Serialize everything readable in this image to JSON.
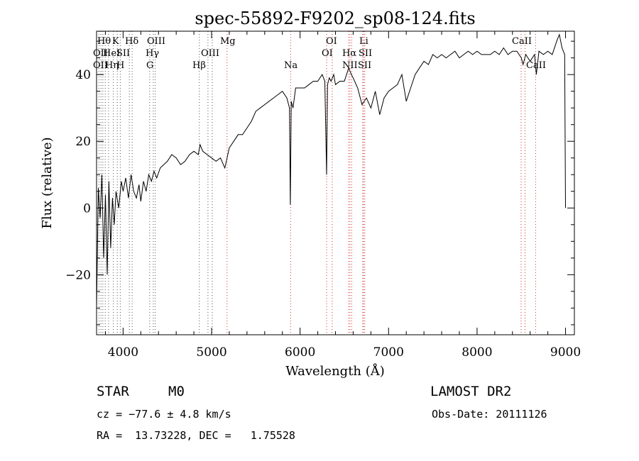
{
  "chart_data": {
    "type": "line",
    "title": "spec-55892-F9202_sp08-124.fits",
    "xlabel": "Wavelength (Å)",
    "ylabel": "Flux (relative)",
    "xlim": [
      3700,
      9100
    ],
    "ylim": [
      -38,
      53
    ],
    "x_ticks": [
      4000,
      5000,
      6000,
      7000,
      8000,
      9000
    ],
    "x_tick_labels": [
      "4000",
      "5000",
      "6000",
      "7000",
      "8000",
      "9000"
    ],
    "y_ticks": [
      -20,
      0,
      20,
      40
    ],
    "y_tick_labels": [
      "−20",
      "0",
      "20",
      "40"
    ],
    "grid": false,
    "series": [
      {
        "values_x": [
          3700,
          3720,
          3740,
          3760,
          3780,
          3800,
          3820,
          3840,
          3860,
          3880,
          3900,
          3920,
          3950,
          3980,
          4000,
          4030,
          4060,
          4090,
          4120,
          4150,
          4180,
          4200,
          4230,
          4260,
          4290,
          4320,
          4350,
          4380,
          4420,
          4460,
          4500,
          4550,
          4600,
          4650,
          4700,
          4750,
          4800,
          4850,
          4870,
          4900,
          4950,
          5000,
          5050,
          5100,
          5150,
          5200,
          5250,
          5300,
          5350,
          5400,
          5450,
          5500,
          5550,
          5600,
          5650,
          5700,
          5750,
          5800,
          5850,
          5880,
          5890,
          5900,
          5920,
          5950,
          6000,
          6050,
          6100,
          6150,
          6200,
          6250,
          6280,
          6300,
          6310,
          6330,
          6350,
          6380,
          6400,
          6450,
          6500,
          6550,
          6580,
          6600,
          6650,
          6700,
          6750,
          6800,
          6850,
          6900,
          6950,
          7000,
          7050,
          7100,
          7150,
          7200,
          7250,
          7300,
          7350,
          7400,
          7450,
          7500,
          7550,
          7600,
          7650,
          7700,
          7750,
          7800,
          7850,
          7900,
          7950,
          8000,
          8050,
          8100,
          8150,
          8200,
          8250,
          8300,
          8350,
          8400,
          8450,
          8500,
          8520,
          8550,
          8600,
          8650,
          8670,
          8700,
          8750,
          8800,
          8850,
          8900,
          8930,
          8960,
          8990,
          9000
        ],
        "values_y": [
          -30,
          6,
          -3,
          10,
          -15,
          4,
          -20,
          8,
          -12,
          3,
          -5,
          5,
          0,
          8,
          5,
          9,
          3,
          10,
          5,
          3,
          7,
          2,
          8,
          5,
          10,
          8,
          11,
          9,
          12,
          13,
          14,
          16,
          15,
          13,
          14,
          16,
          17,
          16,
          19,
          17,
          16,
          15,
          14,
          15,
          12,
          18,
          20,
          22,
          22,
          24,
          26,
          29,
          30,
          31,
          32,
          33,
          34,
          35,
          33,
          30,
          1,
          32,
          30,
          36,
          36,
          36,
          37,
          38,
          38,
          40,
          38,
          10,
          37,
          39,
          38,
          40,
          37,
          38,
          38,
          42,
          40,
          39,
          36,
          31,
          33,
          30,
          35,
          28,
          33,
          35,
          36,
          37,
          40,
          32,
          36,
          40,
          42,
          44,
          43,
          46,
          45,
          46,
          45,
          46,
          47,
          45,
          46,
          47,
          46,
          47,
          46,
          46,
          46,
          47,
          46,
          48,
          46,
          47,
          47,
          45,
          43,
          46,
          44,
          46,
          40,
          47,
          46,
          47,
          46,
          50,
          52,
          48,
          46,
          0
        ],
        "style": "solid-black"
      }
    ],
    "line_markers": {
      "style": "dotted",
      "black": [
        3727,
        3750,
        3771,
        3798,
        3835,
        3889,
        3934,
        3968,
        4070,
        4102,
        4300,
        4341,
        4363,
        4861,
        4959,
        5007
      ],
      "red": [
        5175,
        5893,
        6300,
        6363,
        6548,
        6563,
        6583,
        6708,
        6717,
        6731,
        8498,
        8542,
        8662
      ]
    },
    "line_labels": [
      {
        "text": "Hθ"
      },
      {
        "text": "K"
      },
      {
        "text": "Hδ"
      },
      {
        "text": "OIII"
      },
      {
        "text": "Mg"
      },
      {
        "text": "OI"
      },
      {
        "text": "Li"
      },
      {
        "text": "CaII"
      },
      {
        "text": "OII"
      },
      {
        "text": "HeI"
      },
      {
        "text": "SII"
      },
      {
        "text": "Hγ"
      },
      {
        "text": "OIII"
      },
      {
        "text": "OI"
      },
      {
        "text": "Hα"
      },
      {
        "text": "SII"
      },
      {
        "text": "OII"
      },
      {
        "text": "Hη"
      },
      {
        "text": "H"
      },
      {
        "text": "G"
      },
      {
        "text": "Hβ"
      },
      {
        "text": "Na"
      },
      {
        "text": "NII"
      },
      {
        "text": "SII"
      },
      {
        "text": "CaII"
      }
    ]
  },
  "info": {
    "object_class": "STAR",
    "subclass": "M0",
    "survey": "LAMOST DR2",
    "cz": "cz = −77.6 ± 4.8 km/s",
    "obs_date": "Obs-Date: 20111126",
    "radec": "RA =  13.73228, DEC =   1.75528"
  },
  "colors": {
    "spectrum": "#000000",
    "marker_black": "#555555",
    "marker_red": "#d03030"
  }
}
